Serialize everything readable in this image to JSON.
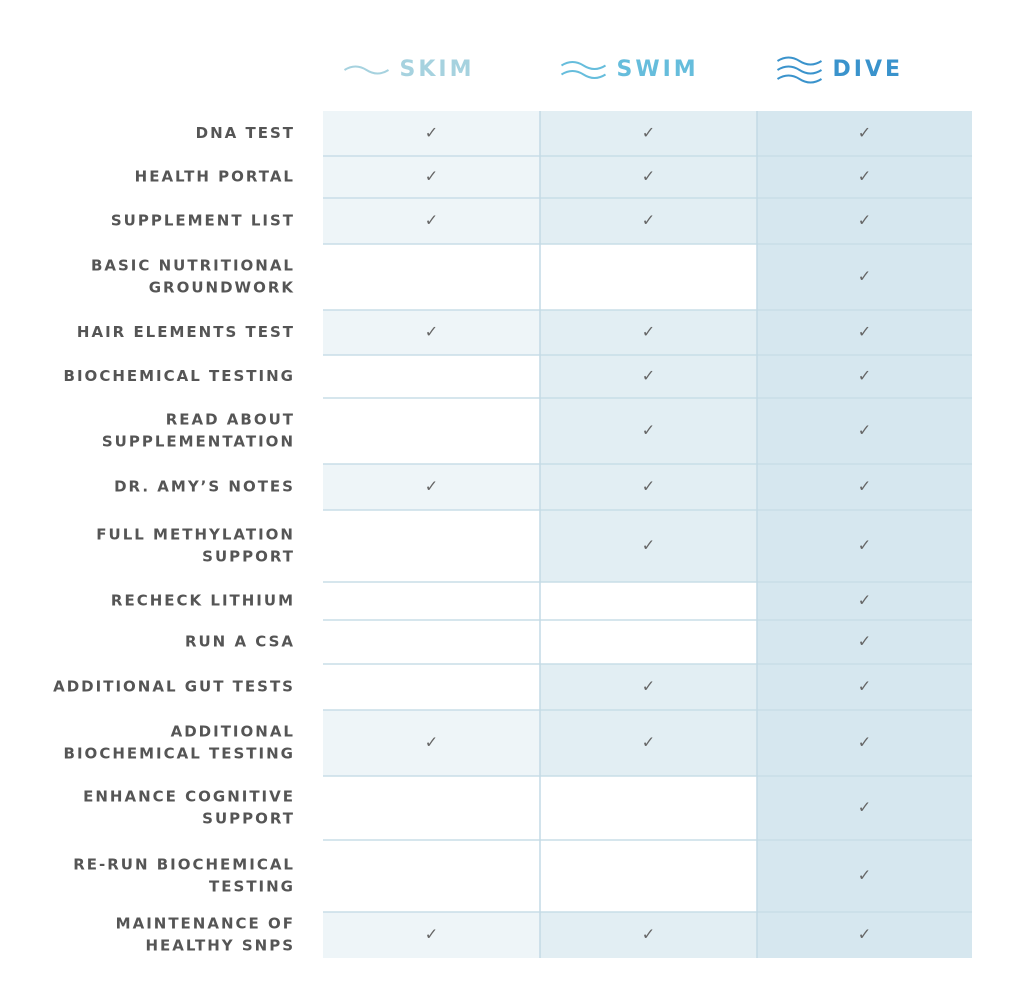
{
  "columns": [
    {
      "name": "SKIM",
      "color": "#a6d2df"
    },
    {
      "name": "SWIM",
      "color": "#66bddc"
    },
    {
      "name": "DIVE",
      "color": "#3a93cc"
    }
  ],
  "rows": [
    {
      "label": [
        "DNA TEST"
      ],
      "cells": [
        "✓",
        "✓",
        "✓"
      ]
    },
    {
      "label": [
        "HEALTH PORTAL"
      ],
      "cells": [
        "✓",
        "✓",
        "✓"
      ]
    },
    {
      "label": [
        "SUPPLEMENT LIST"
      ],
      "cells": [
        "✓",
        "✓",
        "✓"
      ]
    },
    {
      "label": [
        "BASIC NUTRITIONAL",
        "GROUNDWORK"
      ],
      "cells": [
        null,
        null,
        "✓"
      ]
    },
    {
      "label": [
        "HAIR ELEMENTS TEST"
      ],
      "cells": [
        "✓",
        "✓",
        "✓"
      ]
    },
    {
      "label": [
        "BIOCHEMICAL TESTING"
      ],
      "cells": [
        null,
        "✓",
        "✓"
      ]
    },
    {
      "label": [
        "READ ABOUT",
        "SUPPLEMENTATION"
      ],
      "cells": [
        null,
        "✓",
        "✓"
      ]
    },
    {
      "label": [
        "DR. AMY’S NOTES"
      ],
      "cells": [
        "✓",
        "✓",
        "✓"
      ]
    },
    {
      "label": [
        "FULL METHYLATION",
        "SUPPORT"
      ],
      "cells": [
        null,
        "✓",
        "✓"
      ]
    },
    {
      "label": [
        "RECHECK LITHIUM"
      ],
      "cells": [
        null,
        null,
        "✓"
      ]
    },
    {
      "label": [
        "RUN A CSA"
      ],
      "cells": [
        null,
        null,
        "✓"
      ]
    },
    {
      "label": [
        "ADDITIONAL GUT TESTS"
      ],
      "cells": [
        null,
        "✓",
        "✓"
      ]
    },
    {
      "label": [
        "ADDITIONAL",
        "BIOCHEMICAL TESTING"
      ],
      "cells": [
        "✓",
        "✓",
        "✓"
      ]
    },
    {
      "label": [
        "ENHANCE COGNITIVE",
        "SUPPORT"
      ],
      "cells": [
        null,
        null,
        "✓"
      ]
    },
    {
      "label": [
        "RE-RUN BIOCHEMICAL",
        "TESTING"
      ],
      "cells": [
        null,
        null,
        "✓"
      ]
    },
    {
      "label": [
        "MAINTENANCE OF",
        "HEALTHY SNPS"
      ],
      "cells": [
        "✓",
        "✓",
        "✓"
      ]
    }
  ]
}
